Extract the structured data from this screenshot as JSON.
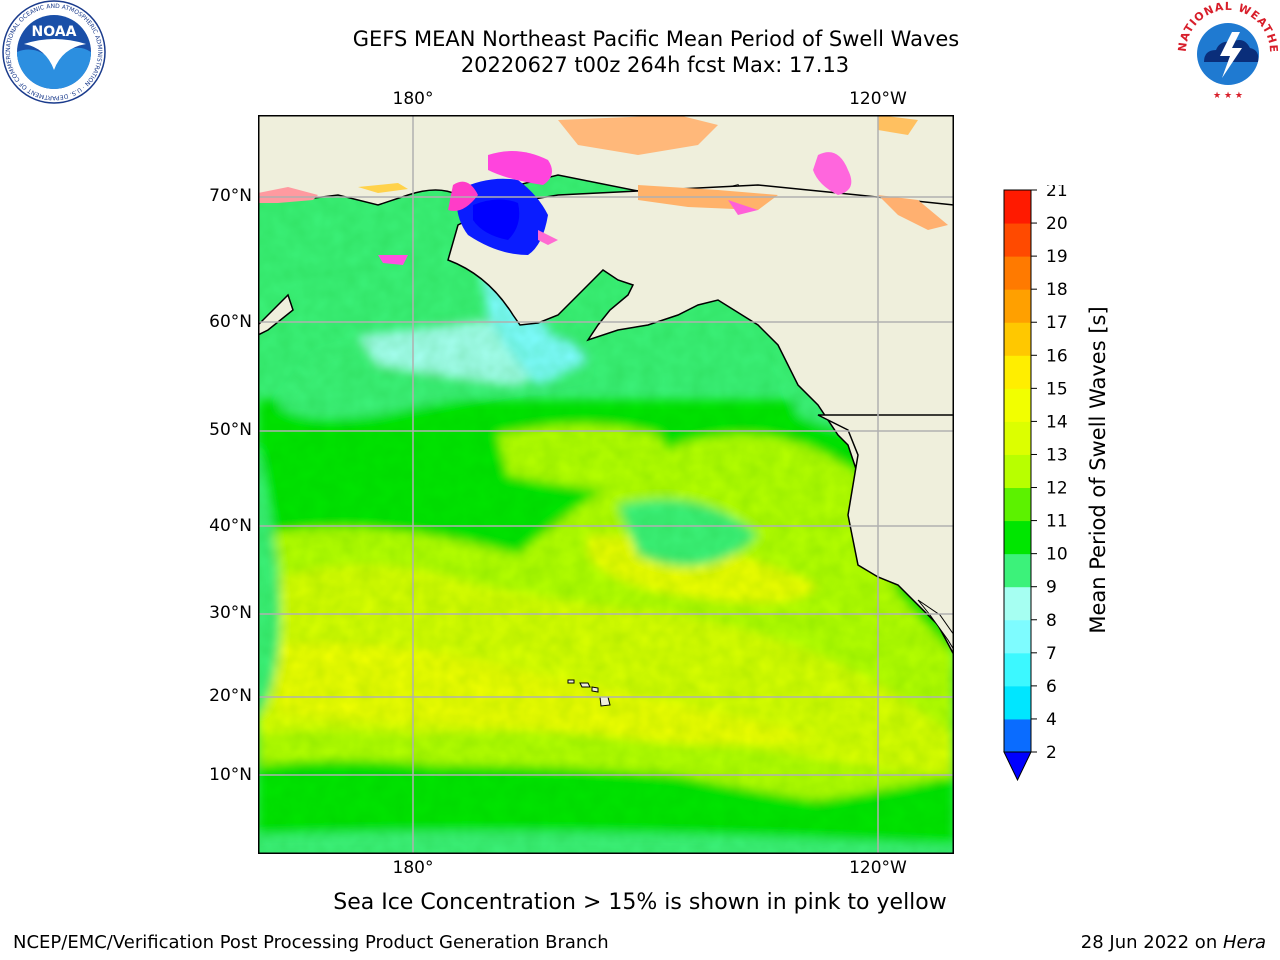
{
  "title": {
    "line1": "GEFS MEAN Northeast Pacific Mean Period of Swell Waves",
    "line2": "20220627 t00z 264h fcst   Max: 17.13"
  },
  "map": {
    "lat_labels": [
      "70°N",
      "60°N",
      "50°N",
      "40°N",
      "30°N",
      "20°N",
      "10°N"
    ],
    "lon_labels_top": [
      "180°",
      "120°W"
    ],
    "lon_labels_bottom": [
      "180°",
      "120°W"
    ],
    "land_color": "#efefdc",
    "coast_color": "#000000",
    "grid_color": "#b0b0b0"
  },
  "colorbar": {
    "title": "Mean Period of Swell Waves [s]",
    "ticks": [
      "2",
      "4",
      "6",
      "7",
      "8",
      "9",
      "10",
      "11",
      "12",
      "13",
      "14",
      "15",
      "16",
      "17",
      "18",
      "19",
      "20",
      "21"
    ],
    "colors": [
      "#0a6cff",
      "#00e6ff",
      "#3cf8ff",
      "#7efcff",
      "#a6fff2",
      "#3cf27a",
      "#00e600",
      "#5cf200",
      "#b8ff00",
      "#dcff00",
      "#f2ff00",
      "#ffee00",
      "#ffc800",
      "#ffa000",
      "#ff7a00",
      "#ff4a00",
      "#ff1a00"
    ],
    "under_color": "#0000ff"
  },
  "note": "Sea Ice Concentration > 15% is shown in pink to yellow",
  "footer": {
    "left": "NCEP/EMC/Verification Post Processing Product Generation Branch",
    "right_prefix": "28 Jun 2022 on ",
    "right_host": "Hera"
  },
  "logos": {
    "noaa_text": "NOAA",
    "noaa_ring": "NATIONAL OCEANIC AND ATMOSPHERIC ADMINISTRATION · U.S. DEPARTMENT OF COMMERCE ·",
    "nws_ring": "NATIONAL WEATHER SERVICE"
  }
}
